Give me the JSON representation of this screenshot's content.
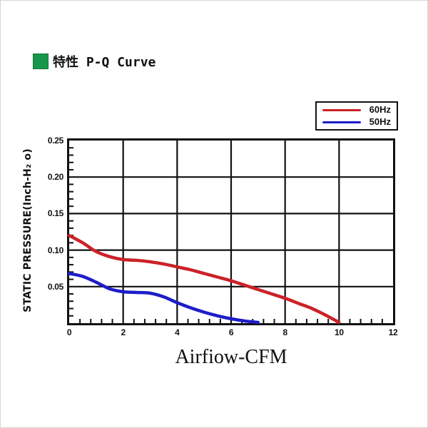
{
  "header": {
    "title": "特性 P-Q Curve",
    "bullet_color": "#17974b"
  },
  "legend": {
    "items": [
      {
        "label": "60Hz",
        "color": "#cc2128"
      },
      {
        "label": "50Hz",
        "color": "#1d1dc9"
      }
    ]
  },
  "chart_data": {
    "type": "line",
    "title": "特性 P-Q Curve",
    "xlabel": "Airfiow-CFM",
    "ylabel": "STATIC PRESSURE(Inch-H₂ o)",
    "xlim": [
      0,
      12
    ],
    "ylim": [
      0,
      0.25
    ],
    "x_ticks": [
      0,
      2,
      4,
      6,
      8,
      10,
      12
    ],
    "y_ticks": [
      0.05,
      0.1,
      0.15,
      0.2,
      0.25
    ],
    "x_minor_step": 0.4,
    "y_minor_step": 0.01,
    "grid": true,
    "grid_color": "#111111",
    "legend_position": "top-right",
    "series": [
      {
        "name": "60Hz",
        "color": "#cc2128",
        "x": [
          0,
          0.5,
          1,
          1.5,
          2,
          2.5,
          3,
          3.5,
          4,
          4.5,
          5,
          5.5,
          6,
          6.5,
          7,
          7.5,
          8,
          8.5,
          9,
          9.5,
          10
        ],
        "y": [
          0.12,
          0.11,
          0.098,
          0.091,
          0.087,
          0.086,
          0.084,
          0.081,
          0.077,
          0.073,
          0.068,
          0.063,
          0.058,
          0.052,
          0.046,
          0.04,
          0.034,
          0.027,
          0.02,
          0.011,
          0.001
        ]
      },
      {
        "name": "50Hz",
        "color": "#1d1dc9",
        "x": [
          0,
          0.5,
          1,
          1.5,
          2,
          2.5,
          3,
          3.5,
          4,
          4.5,
          5,
          5.5,
          6,
          6.5,
          7
        ],
        "y": [
          0.068,
          0.064,
          0.056,
          0.047,
          0.043,
          0.042,
          0.041,
          0.036,
          0.028,
          0.021,
          0.015,
          0.01,
          0.006,
          0.003,
          0.001
        ]
      }
    ]
  }
}
